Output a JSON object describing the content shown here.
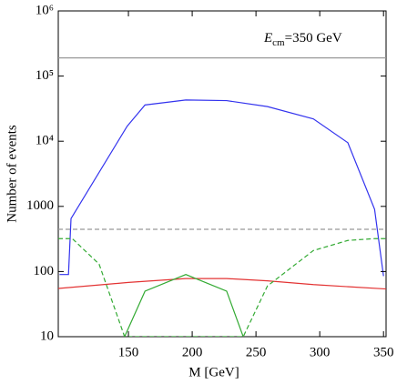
{
  "chart_data": {
    "type": "line",
    "annotation": {
      "symbol": "E",
      "subscript": "cm",
      "text": "=350 GeV"
    },
    "x_label": "M [GeV]",
    "y_label": "Number of events",
    "xlim": [
      95,
      352
    ],
    "xticks": [
      150,
      200,
      250,
      300,
      350
    ],
    "ylim": [
      10,
      1000000
    ],
    "log_y": true,
    "yticks": [
      10,
      100,
      1000,
      {
        "value": 10000,
        "label": "10⁴"
      },
      {
        "value": 100000,
        "label": "10⁵"
      },
      {
        "value": 1000000,
        "label": "10⁶"
      }
    ],
    "series": [
      {
        "color": "#999999",
        "dash": false,
        "x": [
          95,
          352
        ],
        "values": [
          190000,
          190000
        ]
      },
      {
        "color": "#999999",
        "dash": true,
        "x": [
          95,
          352
        ],
        "values": [
          445,
          445
        ]
      },
      {
        "color": "#3333ee",
        "dash": false,
        "x": [
          96,
          103,
          105,
          149,
          163,
          195,
          227,
          259,
          295,
          322,
          343,
          350
        ],
        "values": [
          90,
          90,
          650,
          17000,
          36000,
          43000,
          42000,
          34000,
          22000,
          9500,
          900,
          85
        ]
      },
      {
        "color": "#e33333",
        "dash": false,
        "x": [
          95,
          150,
          195,
          227,
          259,
          295,
          352
        ],
        "values": [
          55,
          68,
          78,
          78,
          72,
          63,
          54
        ]
      },
      {
        "color": "#33aa33",
        "dash": false,
        "x": [
          147,
          163,
          195,
          227,
          240
        ],
        "values": [
          10,
          50,
          90,
          50,
          10
        ]
      },
      {
        "color": "#33aa33",
        "dash": true,
        "x": [
          95,
          106,
          127,
          147,
          240,
          259,
          295,
          322,
          343,
          352
        ],
        "values": [
          320,
          320,
          130,
          10,
          10,
          60,
          210,
          300,
          320,
          320
        ]
      }
    ]
  }
}
